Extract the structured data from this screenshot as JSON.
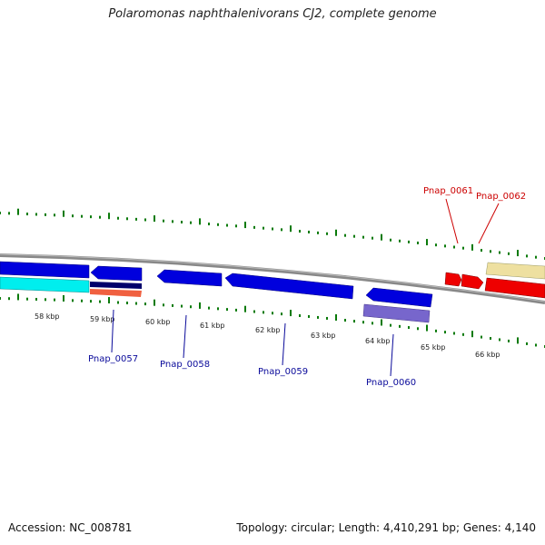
{
  "title": "Polaromonas naphthalenivorans CJ2, complete genome",
  "footer": {
    "accession": "Accession: NC_008781",
    "summary": "Topology: circular; Length: 4,410,291 bp; Genes: 4,140"
  },
  "ticks": [
    {
      "label": "58 kbp"
    },
    {
      "label": "59 kbp"
    },
    {
      "label": "60 kbp"
    },
    {
      "label": "61 kbp"
    },
    {
      "label": "62 kbp"
    },
    {
      "label": "63 kbp"
    },
    {
      "label": "64 kbp"
    },
    {
      "label": "65 kbp"
    },
    {
      "label": "66 kbp"
    }
  ],
  "genes": [
    {
      "name": "Pnap_0057",
      "color": "#0a0a9a"
    },
    {
      "name": "Pnap_0058",
      "color": "#0a0a9a"
    },
    {
      "name": "Pnap_0059",
      "color": "#0a0a9a"
    },
    {
      "name": "Pnap_0060",
      "color": "#0a0a9a"
    },
    {
      "name": "Pnap_0061",
      "color": "#cc0000"
    },
    {
      "name": "Pnap_0062",
      "color": "#cc0000"
    }
  ],
  "colors": {
    "cds_forward": "#0000dd",
    "cds_reverse": "#ee0000",
    "rna": "#00eeee",
    "backbone": "#888888",
    "gc_skew": "#0a7a0a",
    "feature_navy": "#00006b",
    "feature_salmon": "#f06040",
    "feature_lavender": "#7766cc",
    "feature_khaki": "#eee0a0"
  }
}
